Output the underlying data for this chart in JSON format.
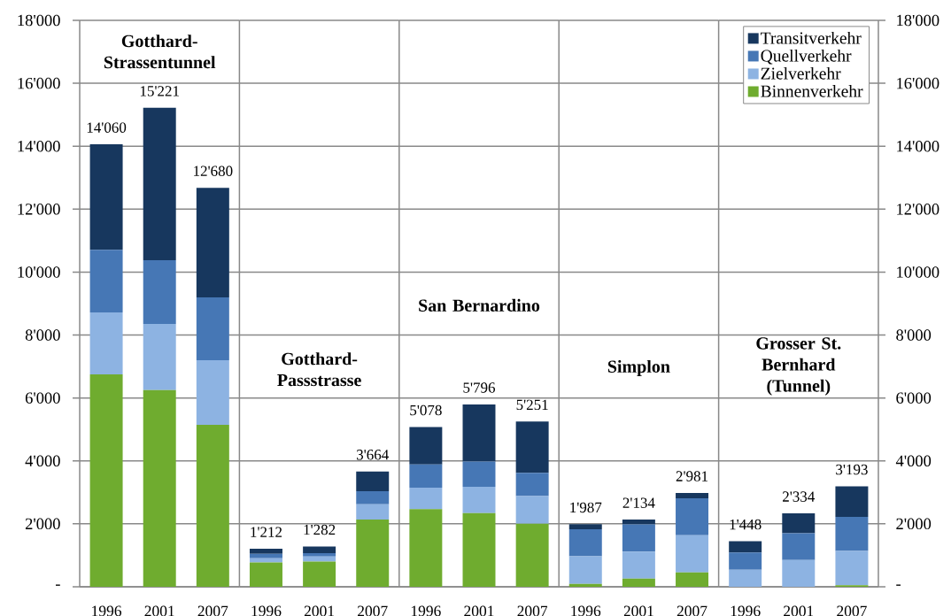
{
  "chart_data": [
    {
      "type": "bar",
      "stacked": true,
      "title": "Gotthard-Strassentunnel",
      "categories": [
        "1996",
        "2001",
        "2007"
      ],
      "series": [
        {
          "color": "#6FAC2F",
          "values": [
            6750,
            6250,
            5150
          ]
        },
        {
          "color": "#8DB3E2",
          "values": [
            1970,
            2100,
            2050
          ]
        },
        {
          "color": "#4677B5",
          "values": [
            1990,
            2030,
            2000
          ]
        },
        {
          "color": "#17375E",
          "values": [
            3350,
            4841,
            3480
          ]
        }
      ],
      "totals": [
        "14'060",
        "15'221",
        "12'680"
      ],
      "ylim": [
        0,
        18000
      ],
      "yticks": [
        {
          "value": 0,
          "label": "-"
        },
        {
          "value": 2000,
          "label": "2'000"
        },
        {
          "value": 4000,
          "label": "4'000"
        },
        {
          "value": 6000,
          "label": "6'000"
        },
        {
          "value": 8000,
          "label": "8'000"
        },
        {
          "value": 10000,
          "label": "10'000"
        },
        {
          "value": 12000,
          "label": "12'000"
        },
        {
          "value": 14000,
          "label": "14'000"
        },
        {
          "value": 16000,
          "label": "16'000"
        },
        {
          "value": 18000,
          "label": "18'000"
        }
      ],
      "grid": "y"
    },
    {
      "type": "bar",
      "stacked": true,
      "title": "Gotthard-Passstrasse",
      "categories": [
        "1996",
        "2001",
        "2007"
      ],
      "series": [
        {
          "color": "#6FAC2F",
          "values": [
            770,
            800,
            2140
          ]
        },
        {
          "color": "#8DB3E2",
          "values": [
            140,
            160,
            480
          ]
        },
        {
          "color": "#4677B5",
          "values": [
            140,
            110,
            420
          ]
        },
        {
          "color": "#17375E",
          "values": [
            162,
            212,
            624
          ]
        }
      ],
      "totals": [
        "1'212",
        "1'282",
        "3'664"
      ],
      "ylim": [
        0,
        18000
      ],
      "yticks": [
        0,
        2000,
        4000,
        6000,
        8000,
        10000,
        12000,
        14000,
        16000,
        18000
      ],
      "tick_labels": "x",
      "grid": "y"
    },
    {
      "type": "bar",
      "stacked": true,
      "title": "San Bernardino",
      "categories": [
        "1996",
        "2001",
        "2007"
      ],
      "series": [
        {
          "color": "#6FAC2F",
          "values": [
            2470,
            2340,
            2000
          ]
        },
        {
          "color": "#8DB3E2",
          "values": [
            680,
            840,
            880
          ]
        },
        {
          "color": "#4677B5",
          "values": [
            740,
            800,
            740
          ]
        },
        {
          "color": "#17375E",
          "values": [
            1188,
            1816,
            1631
          ]
        }
      ],
      "totals": [
        "5'078",
        "5'796",
        "5'251"
      ],
      "ylim": [
        0,
        18000
      ],
      "yticks": [
        0,
        2000,
        4000,
        6000,
        8000,
        10000,
        12000,
        14000,
        16000,
        18000
      ],
      "tick_labels": "x",
      "grid": "y"
    },
    {
      "type": "bar",
      "stacked": true,
      "title": "Simplon",
      "categories": [
        "1996",
        "2001",
        "2007"
      ],
      "series": [
        {
          "color": "#6FAC2F",
          "values": [
            90,
            260,
            460
          ]
        },
        {
          "color": "#8DB3E2",
          "values": [
            880,
            860,
            1180
          ]
        },
        {
          "color": "#4677B5",
          "values": [
            860,
            860,
            1170
          ]
        },
        {
          "color": "#17375E",
          "values": [
            157,
            154,
            171
          ]
        }
      ],
      "totals": [
        "1'987",
        "2'134",
        "2'981"
      ],
      "ylim": [
        0,
        18000
      ],
      "yticks": [
        0,
        2000,
        4000,
        6000,
        8000,
        10000,
        12000,
        14000,
        16000,
        18000
      ],
      "tick_labels": "x",
      "grid": "y"
    },
    {
      "type": "bar",
      "stacked": true,
      "title": "Grosser St. Bernhard (Tunnel)",
      "categories": [
        "1996",
        "2001",
        "2007"
      ],
      "series": [
        {
          "name": "Binnenverkehr",
          "color": "#6FAC2F",
          "values": [
            0,
            0,
            50
          ]
        },
        {
          "name": "Zielverkehr",
          "color": "#8DB3E2",
          "values": [
            540,
            850,
            1090
          ]
        },
        {
          "name": "Quellverkehr",
          "color": "#4677B5",
          "values": [
            550,
            850,
            1080
          ]
        },
        {
          "name": "Transitverkehr",
          "color": "#17375E",
          "values": [
            358,
            634,
            973
          ]
        }
      ],
      "totals": [
        "1'448",
        "2'334",
        "3'193"
      ],
      "ylim": [
        0,
        18000
      ],
      "yticks": [
        {
          "value": 0,
          "label": "-"
        },
        {
          "value": 2000,
          "label": "2'000"
        },
        {
          "value": 4000,
          "label": "4'000"
        },
        {
          "value": 6000,
          "label": "6'000"
        },
        {
          "value": 8000,
          "label": "8'000"
        },
        {
          "value": 10000,
          "label": "10'000"
        },
        {
          "value": 12000,
          "label": "12'000"
        },
        {
          "value": 14000,
          "label": "14'000"
        },
        {
          "value": 16000,
          "label": "16'000"
        },
        {
          "value": 18000,
          "label": "18'000"
        }
      ],
      "grid": "y",
      "legend": "top right"
    }
  ]
}
